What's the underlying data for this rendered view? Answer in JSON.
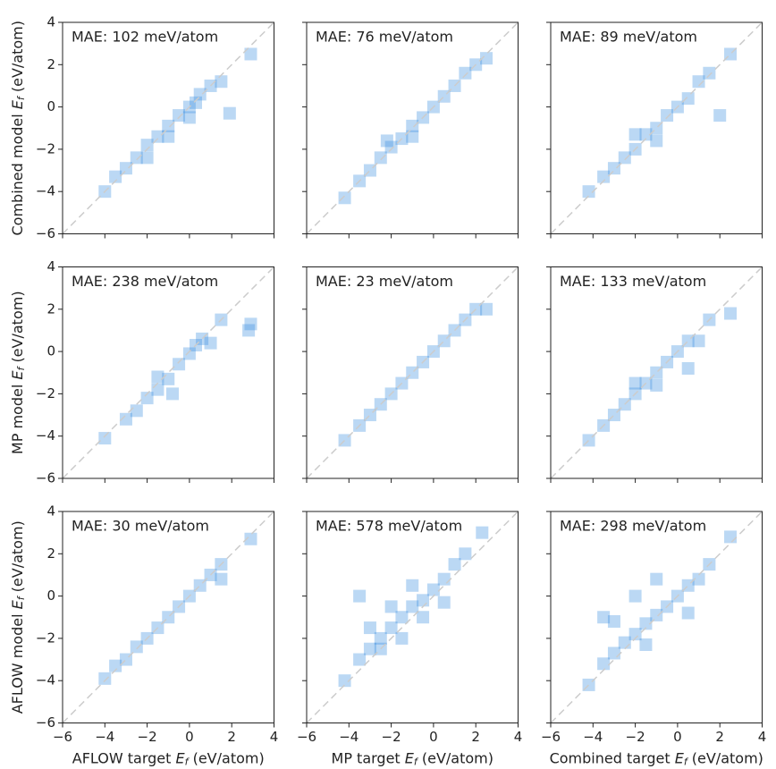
{
  "chart_data": [
    {
      "type": "hist2d",
      "annotation": "MAE: 102 meV/atom",
      "color": "#3c8ee0",
      "x": [
        -4,
        -3.5,
        -3,
        -2.5,
        -2,
        -1.5,
        -1,
        -0.5,
        0,
        0.3,
        0.5,
        1,
        1.5,
        -1,
        -2,
        0,
        2.9,
        1.9
      ],
      "y": [
        -4,
        -3.3,
        -2.9,
        -2.4,
        -1.8,
        -1.4,
        -0.9,
        -0.4,
        0,
        0.2,
        0.6,
        1,
        1.2,
        -1.4,
        -2.4,
        -0.5,
        2.5,
        -0.3
      ],
      "xlim": [
        -6,
        4
      ],
      "ylim": [
        -6,
        4
      ],
      "xticks": [
        -6,
        -4,
        -2,
        0,
        2,
        4
      ],
      "yticks": [
        {
          "value": -6,
          "label": "−6"
        },
        {
          "value": -4,
          "label": "−4"
        },
        {
          "value": -2,
          "label": "−2"
        },
        0,
        2,
        4
      ],
      "ylabel": {
        "text": "Combined model ",
        "symbol": "E",
        "subscript": "f",
        "unit": " (eV/atom)"
      }
    },
    {
      "type": "hist2d",
      "annotation": "MAE: 76 meV/atom",
      "color": "#3c8ee0",
      "x": [
        -4.2,
        -3.5,
        -3,
        -2.5,
        -2,
        -1.5,
        -1,
        -0.5,
        0,
        0.5,
        1,
        1.5,
        2,
        2.5,
        -2.2,
        -1
      ],
      "y": [
        -4.3,
        -3.5,
        -3,
        -2.4,
        -1.9,
        -1.5,
        -0.9,
        -0.5,
        0,
        0.5,
        1,
        1.6,
        2,
        2.3,
        -1.6,
        -1.4
      ],
      "xlim": [
        -6,
        4
      ],
      "ylim": [
        -6,
        4
      ],
      "xticks": [
        -6,
        -4,
        -2,
        0,
        2,
        4
      ],
      "yticks": [
        -6,
        -4,
        -2,
        0,
        2,
        4
      ]
    },
    {
      "type": "hist2d",
      "annotation": "MAE: 89 meV/atom",
      "color": "#3c8ee0",
      "x": [
        -4.2,
        -3.5,
        -3,
        -2.5,
        -2,
        -1.5,
        -1,
        -0.5,
        0,
        0.5,
        1,
        1.5,
        2.5,
        -2,
        -1,
        2
      ],
      "y": [
        -4,
        -3.3,
        -2.9,
        -2.4,
        -2,
        -1.3,
        -1,
        -0.4,
        0,
        0.4,
        1.2,
        1.6,
        2.5,
        -1.3,
        -1.6,
        -0.4
      ],
      "xlim": [
        -6,
        4
      ],
      "ylim": [
        -6,
        4
      ],
      "xticks": [
        -6,
        -4,
        -2,
        0,
        2,
        4
      ],
      "yticks": [
        -6,
        -4,
        -2,
        0,
        2,
        4
      ]
    },
    {
      "type": "hist2d",
      "annotation": "MAE: 238 meV/atom",
      "color": "#3c8ee0",
      "x": [
        -4,
        -3,
        -2.5,
        -2,
        -1.5,
        -1,
        -0.5,
        0,
        0.3,
        0.6,
        1,
        1.5,
        2.9,
        -1.5,
        -0.8,
        2.8
      ],
      "y": [
        -4.1,
        -3.2,
        -2.8,
        -2.2,
        -1.8,
        -1.3,
        -0.6,
        -0.1,
        0.3,
        0.6,
        0.4,
        1.5,
        1.3,
        -1.2,
        -2,
        1
      ],
      "xlim": [
        -6,
        4
      ],
      "ylim": [
        -6,
        4
      ],
      "xticks": [
        -6,
        -4,
        -2,
        0,
        2,
        4
      ],
      "yticks": [
        {
          "value": -6,
          "label": "−6"
        },
        {
          "value": -4,
          "label": "−4"
        },
        {
          "value": -2,
          "label": "−2"
        },
        0,
        2,
        4
      ],
      "ylabel": {
        "text": "MP model ",
        "symbol": "E",
        "subscript": "f",
        "unit": " (eV/atom)"
      }
    },
    {
      "type": "hist2d",
      "annotation": "MAE: 23 meV/atom",
      "color": "#3c8ee0",
      "x": [
        -4.2,
        -3.5,
        -3,
        -2.5,
        -2,
        -1.5,
        -1,
        -0.5,
        0,
        0.5,
        1,
        1.5,
        2,
        2.5
      ],
      "y": [
        -4.2,
        -3.5,
        -3,
        -2.5,
        -2,
        -1.5,
        -1,
        -0.5,
        0,
        0.5,
        1,
        1.5,
        2,
        2
      ],
      "xlim": [
        -6,
        4
      ],
      "ylim": [
        -6,
        4
      ],
      "xticks": [
        -6,
        -4,
        -2,
        0,
        2,
        4
      ],
      "yticks": [
        -6,
        -4,
        -2,
        0,
        2,
        4
      ]
    },
    {
      "type": "hist2d",
      "annotation": "MAE: 133 meV/atom",
      "color": "#3c8ee0",
      "x": [
        -4.2,
        -3.5,
        -3,
        -2.5,
        -2,
        -1.5,
        -1,
        -0.5,
        0,
        0.5,
        1,
        1.5,
        2.5,
        -2,
        -1,
        0.5
      ],
      "y": [
        -4.2,
        -3.5,
        -3,
        -2.5,
        -2,
        -1.5,
        -1,
        -0.5,
        0,
        0.5,
        0.5,
        1.5,
        1.8,
        -1.5,
        -1.6,
        -0.8
      ],
      "xlim": [
        -6,
        4
      ],
      "ylim": [
        -6,
        4
      ],
      "xticks": [
        -6,
        -4,
        -2,
        0,
        2,
        4
      ],
      "yticks": [
        -6,
        -4,
        -2,
        0,
        2,
        4
      ]
    },
    {
      "type": "hist2d",
      "annotation": "MAE: 30 meV/atom",
      "color": "#3c8ee0",
      "x": [
        -4,
        -3.5,
        -3,
        -2.5,
        -2,
        -1.5,
        -1,
        -0.5,
        0,
        0.5,
        1,
        1.5,
        2.9,
        1.5
      ],
      "y": [
        -3.9,
        -3.3,
        -3,
        -2.4,
        -2,
        -1.5,
        -1,
        -0.5,
        0,
        0.5,
        1,
        1.5,
        2.7,
        0.8
      ],
      "xlim": [
        -6,
        4
      ],
      "ylim": [
        -6,
        4
      ],
      "xticks": [
        {
          "value": -6,
          "label": "−6"
        },
        {
          "value": -4,
          "label": "−4"
        },
        {
          "value": -2,
          "label": "−2"
        },
        0,
        2,
        4
      ],
      "yticks": [
        {
          "value": -6,
          "label": "−6"
        },
        {
          "value": -4,
          "label": "−4"
        },
        {
          "value": -2,
          "label": "−2"
        },
        0,
        2,
        4
      ],
      "xlabel": {
        "text": "AFLOW target ",
        "symbol": "E",
        "subscript": "f",
        "unit": " (eV/atom)"
      },
      "ylabel": {
        "text": "AFLOW model ",
        "symbol": "E",
        "subscript": "f",
        "unit": " (eV/atom)"
      }
    },
    {
      "type": "hist2d",
      "annotation": "MAE: 578 meV/atom",
      "color": "#3c8ee0",
      "x": [
        -4.2,
        -3.5,
        -3,
        -2.5,
        -2,
        -1.5,
        -1,
        -0.5,
        0,
        0.5,
        1,
        1.5,
        -3,
        -2,
        -1,
        -2.5,
        -1.5,
        -0.5,
        0.5,
        2.3,
        -3.5
      ],
      "y": [
        -4,
        -3,
        -2.5,
        -2,
        -1.5,
        -1,
        -0.5,
        -0.2,
        0.3,
        0.8,
        1.5,
        2,
        -1.5,
        -0.5,
        0.5,
        -2.5,
        -2,
        -1,
        -0.3,
        3,
        0
      ],
      "xlim": [
        -6,
        4
      ],
      "ylim": [
        -6,
        4
      ],
      "xticks": [
        {
          "value": -6,
          "label": "−6"
        },
        {
          "value": -4,
          "label": "−4"
        },
        {
          "value": -2,
          "label": "−2"
        },
        0,
        2,
        4
      ],
      "yticks": [
        -6,
        -4,
        -2,
        0,
        2,
        4
      ],
      "xlabel": {
        "text": "MP target ",
        "symbol": "E",
        "subscript": "f",
        "unit": " (eV/atom)"
      }
    },
    {
      "type": "hist2d",
      "annotation": "MAE: 298 meV/atom",
      "color": "#3c8ee0",
      "x": [
        -4.2,
        -3.5,
        -3,
        -2.5,
        -2,
        -1.5,
        -1,
        -0.5,
        0,
        0.5,
        1,
        1.5,
        2.5,
        -3,
        -2,
        -1,
        -3.5,
        0.5,
        -1.5
      ],
      "y": [
        -4.2,
        -3.2,
        -2.7,
        -2.2,
        -1.8,
        -1.3,
        -0.9,
        -0.5,
        0,
        0.5,
        0.8,
        1.5,
        2.8,
        -1.2,
        0,
        0.8,
        -1,
        -0.8,
        -2.3
      ],
      "xlim": [
        -6,
        4
      ],
      "ylim": [
        -6,
        4
      ],
      "xticks": [
        {
          "value": -6,
          "label": "−6"
        },
        {
          "value": -4,
          "label": "−4"
        },
        {
          "value": -2,
          "label": "−2"
        },
        0,
        2,
        4
      ],
      "yticks": [
        -6,
        -4,
        -2,
        0,
        2,
        4
      ],
      "xlabel": {
        "text": "Combined target ",
        "symbol": "E",
        "subscript": "f",
        "unit": " (eV/atom)"
      }
    }
  ]
}
